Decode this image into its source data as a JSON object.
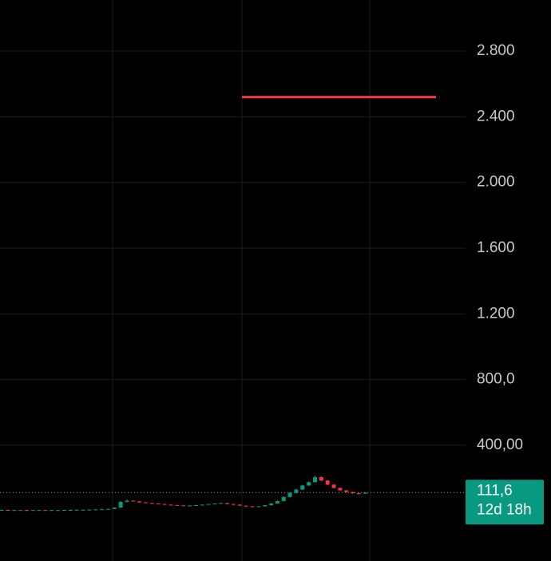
{
  "chart_data": {
    "type": "candlestick",
    "categories": [
      null,
      null,
      null,
      null,
      null,
      null,
      null,
      null,
      null,
      null,
      null,
      null,
      null,
      null,
      null,
      null,
      null,
      null,
      null,
      null,
      null,
      null,
      null,
      null,
      null,
      null,
      null,
      null,
      null,
      null,
      null,
      null,
      null,
      null,
      null,
      null,
      null,
      null,
      null,
      null,
      null,
      null,
      null,
      null,
      null,
      null,
      null,
      null,
      null,
      null,
      null,
      null,
      null,
      null,
      null,
      null,
      null,
      null,
      null
    ],
    "open": [
      6,
      6,
      5,
      5,
      5,
      4,
      5,
      5,
      4,
      5,
      5,
      6,
      6,
      7,
      7,
      8,
      9,
      10,
      12,
      20,
      55,
      62,
      58,
      52,
      48,
      45,
      42,
      38,
      36,
      34,
      32,
      33,
      35,
      38,
      42,
      45,
      48,
      42,
      38,
      32,
      28,
      26,
      28,
      35,
      45,
      60,
      85,
      110,
      130,
      155,
      175,
      205,
      185,
      160,
      140,
      125,
      115,
      108,
      105
    ],
    "high": [
      8,
      7,
      7,
      6,
      6,
      6,
      6,
      6,
      6,
      6,
      7,
      8,
      8,
      9,
      9,
      10,
      11,
      13,
      22,
      60,
      70,
      64,
      59,
      53,
      49,
      46,
      43,
      39,
      37,
      35,
      34,
      36,
      39,
      43,
      46,
      50,
      49,
      43,
      39,
      33,
      29,
      29,
      36,
      47,
      62,
      88,
      113,
      135,
      160,
      180,
      215,
      210,
      188,
      162,
      142,
      127,
      117,
      110,
      114
    ],
    "low": [
      4,
      4,
      3,
      3,
      3,
      3,
      3,
      3,
      3,
      3,
      4,
      5,
      5,
      5,
      6,
      7,
      8,
      9,
      11,
      18,
      52,
      56,
      50,
      46,
      43,
      40,
      36,
      34,
      32,
      30,
      30,
      32,
      34,
      37,
      40,
      43,
      40,
      36,
      30,
      26,
      24,
      25,
      27,
      33,
      43,
      58,
      82,
      106,
      127,
      152,
      172,
      180,
      157,
      136,
      122,
      112,
      104,
      101,
      103
    ],
    "close": [
      6,
      5,
      5,
      5,
      4,
      5,
      5,
      4,
      5,
      5,
      6,
      6,
      7,
      7,
      8,
      9,
      10,
      12,
      20,
      55,
      62,
      58,
      52,
      48,
      45,
      42,
      38,
      36,
      34,
      32,
      33,
      35,
      38,
      42,
      45,
      48,
      42,
      38,
      32,
      28,
      26,
      28,
      35,
      45,
      60,
      85,
      110,
      130,
      155,
      175,
      205,
      185,
      160,
      140,
      125,
      115,
      108,
      105,
      111.6
    ],
    "up_color": "#089981",
    "down_color": "#f23645",
    "ylim": [
      -305,
      3111
    ],
    "yticks": [
      {
        "value": 400,
        "label": "400,00"
      },
      {
        "value": 800,
        "label": "800,0"
      },
      {
        "value": 1200,
        "label": "1.200"
      },
      {
        "value": 1600,
        "label": "1.600"
      },
      {
        "value": 2000,
        "label": "2.000"
      },
      {
        "value": 2400,
        "label": "2.400"
      },
      {
        "value": 2800,
        "label": "2.800"
      }
    ],
    "grid": true,
    "hline": {
      "value": 2520,
      "color": "#f23645"
    },
    "last_price": {
      "value": 111.6,
      "label": "111,6",
      "color": "#089981"
    },
    "countdown": "12d 18h"
  }
}
